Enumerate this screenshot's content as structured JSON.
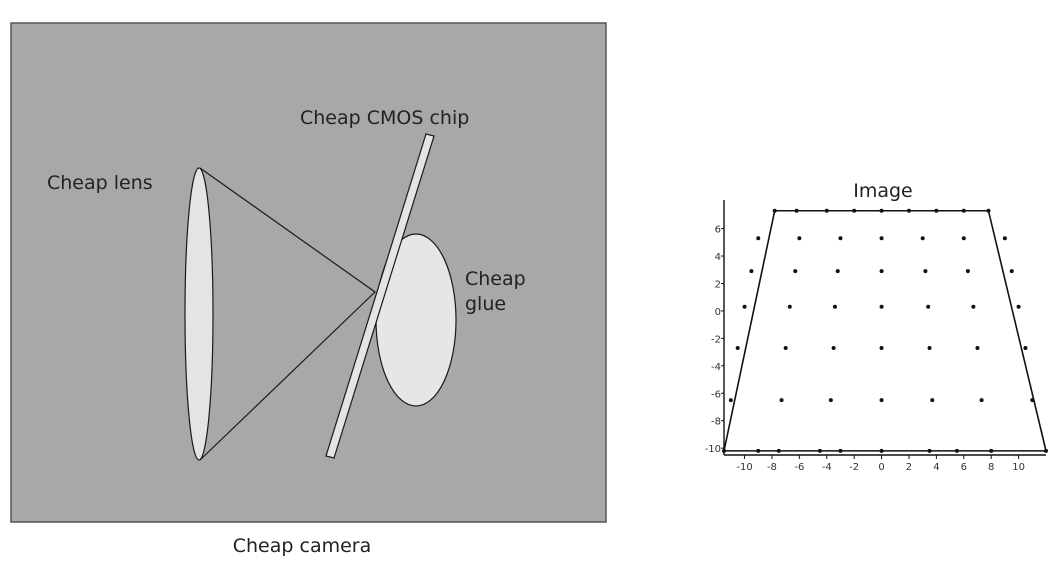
{
  "camera": {
    "caption": "Cheap camera",
    "lens_label": "Cheap lens",
    "chip_label": "Cheap CMOS chip",
    "glue_label_line1": "Cheap",
    "glue_label_line2": "glue",
    "colors": {
      "panel": "#a8a8a8",
      "panel_border": "#555555",
      "lens_fill": "#e4e4e4",
      "glue_fill": "#e6e6e6",
      "chip_fill": "#e4e4e4",
      "line": "#1a1a1a"
    }
  },
  "chart_data": {
    "type": "scatter",
    "title": "Image",
    "xlabel": "",
    "ylabel": "",
    "xlim": [
      -11.5,
      12
    ],
    "ylim": [
      -10.5,
      7.5
    ],
    "x_ticks": [
      -10,
      -8,
      -6,
      -4,
      -2,
      0,
      2,
      4,
      6,
      8,
      10
    ],
    "y_ticks": [
      6,
      4,
      2,
      0,
      -2,
      -4,
      -6,
      -8,
      -10
    ],
    "grid": false,
    "rows": [
      {
        "y": 7.3,
        "x": [
          -7.8,
          -6.2,
          -4.0,
          -2.0,
          0.0,
          2.0,
          4.0,
          6.0,
          7.8
        ]
      },
      {
        "y": 5.3,
        "x": [
          -9.0,
          -6.0,
          -3.0,
          0.0,
          3.0,
          6.0,
          9.0
        ]
      },
      {
        "y": 2.9,
        "x": [
          -9.5,
          -6.3,
          -3.2,
          0.0,
          3.2,
          6.3,
          9.5
        ]
      },
      {
        "y": 0.3,
        "x": [
          -10.0,
          -6.7,
          -3.4,
          0.0,
          3.4,
          6.7,
          10.0
        ]
      },
      {
        "y": -2.7,
        "x": [
          -10.5,
          -7.0,
          -3.5,
          0.0,
          3.5,
          7.0,
          10.5
        ]
      },
      {
        "y": -6.5,
        "x": [
          -11.0,
          -7.3,
          -3.7,
          0.0,
          3.7,
          7.3,
          11.0
        ]
      },
      {
        "y": -10.2,
        "x": [
          -11.5,
          -9.0,
          -7.5,
          -4.5,
          -3.0,
          0.0,
          3.5,
          5.5,
          8.0,
          12.0
        ]
      }
    ],
    "outline": [
      [
        -7.8,
        7.3
      ],
      [
        7.8,
        7.3
      ],
      [
        12.0,
        -10.2
      ],
      [
        -11.5,
        -10.2
      ]
    ],
    "colors": {
      "points": "#111111",
      "outline": "#111111",
      "axis": "#111111"
    }
  }
}
